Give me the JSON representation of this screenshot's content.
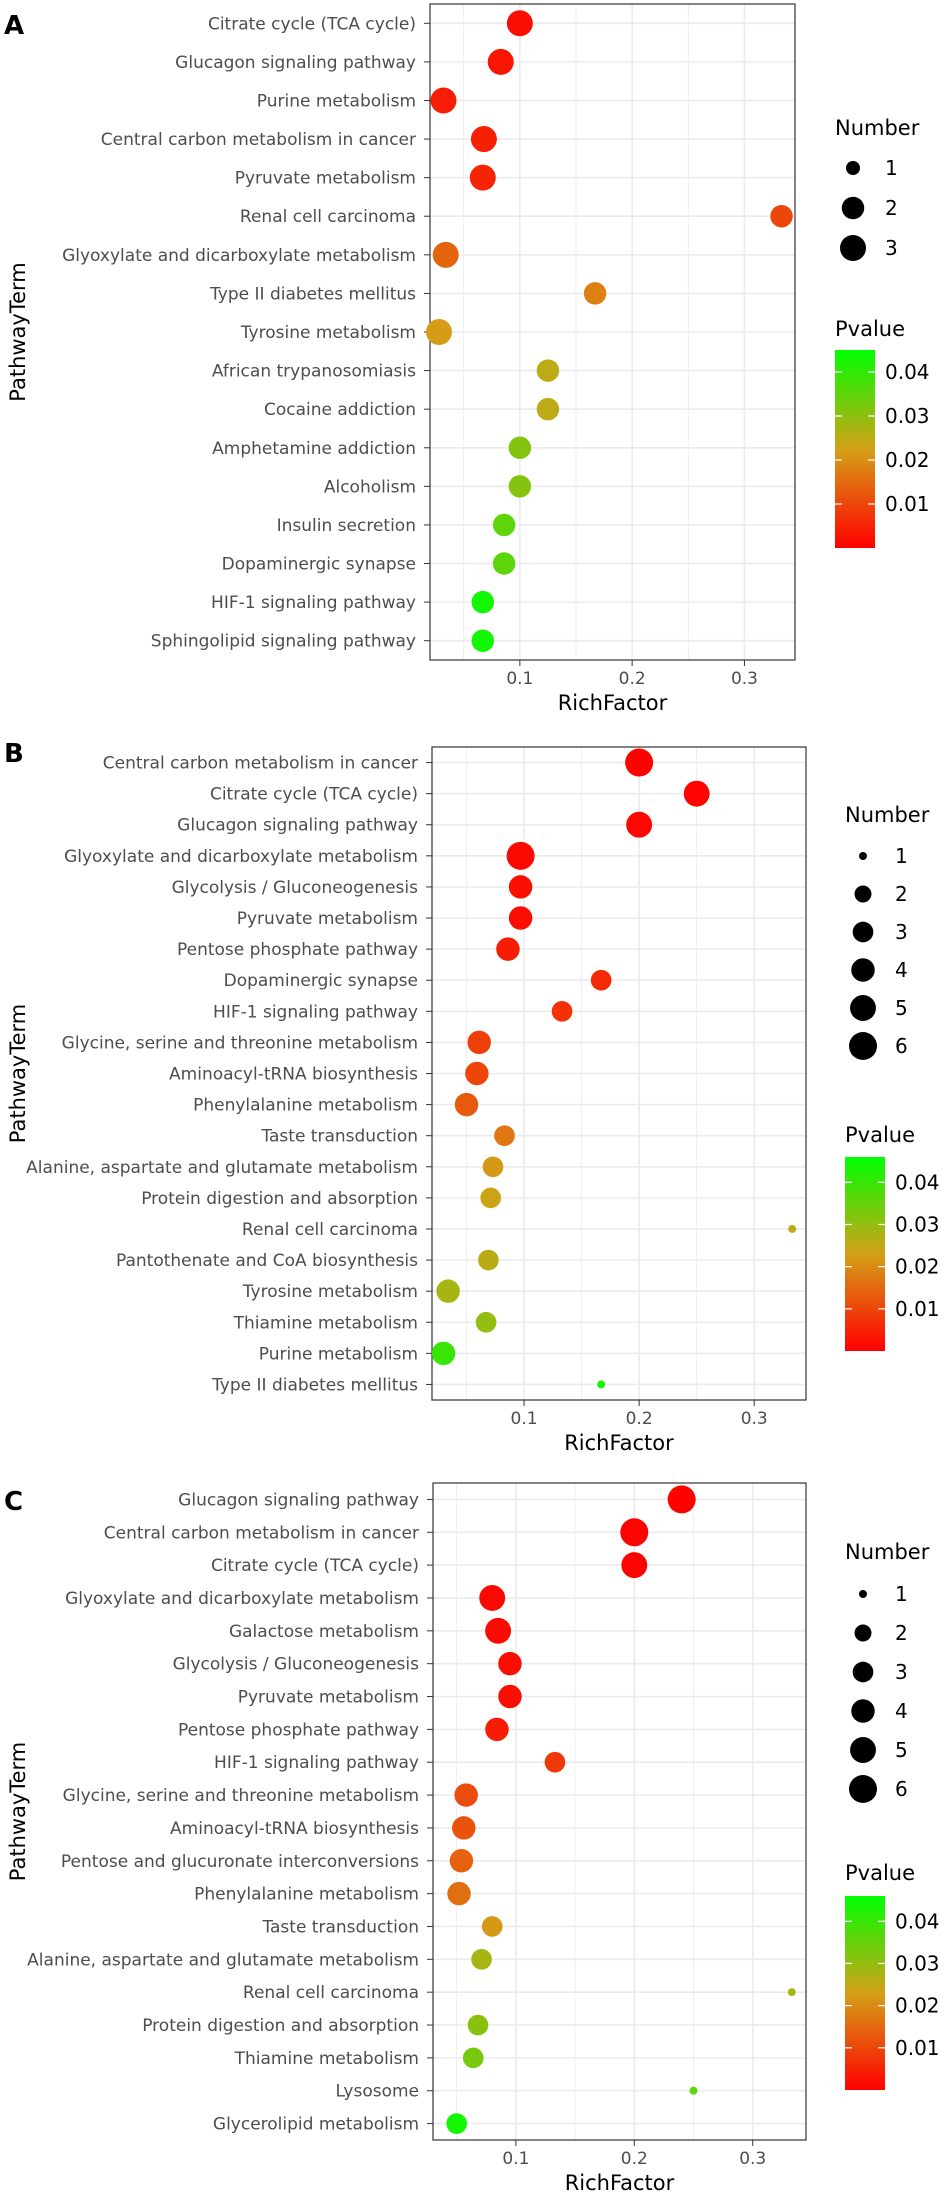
{
  "figure": {
    "panel_labels": [
      "A",
      "B",
      "C"
    ]
  },
  "colors": {
    "low": "#ff0000",
    "mid": "#d4a017",
    "high": "#00ff00",
    "panel_bg": "#ffffff",
    "grid": "#ebebeb",
    "border": "#333333"
  },
  "chart_data": [
    {
      "type": "scatter",
      "panel": "A",
      "xlabel": "RichFactor",
      "ylabel": "PathwayTerm",
      "xlim": [
        0.02,
        0.345
      ],
      "xticks": [
        0.1,
        0.2,
        0.3
      ],
      "xtick_labels": [
        "0.1",
        "0.2",
        "0.3"
      ],
      "size_legend": {
        "title": "Number",
        "values": [
          1,
          2,
          3
        ],
        "labels": [
          "1",
          "2",
          "3"
        ]
      },
      "color_legend": {
        "title": "Pvalue",
        "range": [
          0,
          0.045
        ],
        "ticks": [
          0.01,
          0.02,
          0.03,
          0.04
        ],
        "tick_labels": [
          "0.01",
          "0.02",
          "0.03",
          "0.04"
        ]
      },
      "points": [
        {
          "term": "Citrate cycle (TCA cycle)",
          "x": 0.1,
          "number": 3,
          "p": 0.002
        },
        {
          "term": "Glucagon signaling pathway",
          "x": 0.083,
          "number": 3,
          "p": 0.003
        },
        {
          "term": "Purine metabolism",
          "x": 0.032,
          "number": 3,
          "p": 0.004
        },
        {
          "term": "Central carbon metabolism in cancer",
          "x": 0.068,
          "number": 3,
          "p": 0.0045
        },
        {
          "term": "Pyruvate metabolism",
          "x": 0.067,
          "number": 3,
          "p": 0.005
        },
        {
          "term": "Renal cell carcinoma",
          "x": 0.333,
          "number": 2,
          "p": 0.01
        },
        {
          "term": "Glyoxylate and dicarboxylate metabolism",
          "x": 0.034,
          "number": 3,
          "p": 0.014
        },
        {
          "term": "Type II diabetes mellitus",
          "x": 0.167,
          "number": 2,
          "p": 0.018
        },
        {
          "term": "Tyrosine metabolism",
          "x": 0.028,
          "number": 3,
          "p": 0.022
        },
        {
          "term": "African trypanosomiasis",
          "x": 0.125,
          "number": 2,
          "p": 0.025
        },
        {
          "term": "Cocaine addiction",
          "x": 0.125,
          "number": 2,
          "p": 0.025
        },
        {
          "term": "Amphetamine addiction",
          "x": 0.1,
          "number": 2,
          "p": 0.031
        },
        {
          "term": "Alcoholism",
          "x": 0.1,
          "number": 2,
          "p": 0.031
        },
        {
          "term": "Insulin secretion",
          "x": 0.086,
          "number": 2,
          "p": 0.035
        },
        {
          "term": "Dopaminergic synapse",
          "x": 0.086,
          "number": 2,
          "p": 0.035
        },
        {
          "term": "HIF-1 signaling pathway",
          "x": 0.067,
          "number": 2,
          "p": 0.043
        },
        {
          "term": "Sphingolipid signaling pathway",
          "x": 0.067,
          "number": 2,
          "p": 0.043
        }
      ]
    },
    {
      "type": "scatter",
      "panel": "B",
      "xlabel": "RichFactor",
      "ylabel": "PathwayTerm",
      "xlim": [
        0.02,
        0.345
      ],
      "xticks": [
        0.1,
        0.2,
        0.3
      ],
      "xtick_labels": [
        "0.1",
        "0.2",
        "0.3"
      ],
      "size_legend": {
        "title": "Number",
        "values": [
          1,
          2,
          3,
          4,
          5,
          6
        ],
        "labels": [
          "1",
          "2",
          "3",
          "4",
          "5",
          "6"
        ]
      },
      "color_legend": {
        "title": "Pvalue",
        "range": [
          0,
          0.046
        ],
        "ticks": [
          0.01,
          0.02,
          0.03,
          0.04
        ],
        "tick_labels": [
          "0.01",
          "0.02",
          "0.03",
          "0.04"
        ]
      },
      "points": [
        {
          "term": "Central carbon metabolism in cancer",
          "x": 0.2,
          "number": 6,
          "p": 0.0003
        },
        {
          "term": "Citrate cycle (TCA cycle)",
          "x": 0.25,
          "number": 5,
          "p": 0.0004
        },
        {
          "term": "Glucagon signaling pathway",
          "x": 0.2,
          "number": 5,
          "p": 0.0008
        },
        {
          "term": "Glyoxylate and dicarboxylate metabolism",
          "x": 0.097,
          "number": 6,
          "p": 0.0015
        },
        {
          "term": "Glycolysis / Gluconeogenesis",
          "x": 0.097,
          "number": 4,
          "p": 0.002
        },
        {
          "term": "Pyruvate metabolism",
          "x": 0.097,
          "number": 4,
          "p": 0.002
        },
        {
          "term": "Pentose phosphate pathway",
          "x": 0.086,
          "number": 4,
          "p": 0.004
        },
        {
          "term": "Dopaminergic synapse",
          "x": 0.167,
          "number": 3,
          "p": 0.006
        },
        {
          "term": "HIF-1 signaling pathway",
          "x": 0.133,
          "number": 3,
          "p": 0.007
        },
        {
          "term": "Glycine, serine and threonine metabolism",
          "x": 0.061,
          "number": 4,
          "p": 0.009
        },
        {
          "term": "Aminoacyl-tRNA biosynthesis",
          "x": 0.059,
          "number": 4,
          "p": 0.01
        },
        {
          "term": "Phenylalanine metabolism",
          "x": 0.05,
          "number": 4,
          "p": 0.013
        },
        {
          "term": "Taste transduction",
          "x": 0.083,
          "number": 3,
          "p": 0.017
        },
        {
          "term": "Alanine, aspartate and glutamate metabolism",
          "x": 0.073,
          "number": 3,
          "p": 0.022
        },
        {
          "term": "Protein digestion and absorption",
          "x": 0.071,
          "number": 3,
          "p": 0.024
        },
        {
          "term": "Renal cell carcinoma",
          "x": 0.333,
          "number": 1,
          "p": 0.025
        },
        {
          "term": "Pantothenate and CoA biosynthesis",
          "x": 0.069,
          "number": 3,
          "p": 0.026
        },
        {
          "term": "Tyrosine metabolism",
          "x": 0.034,
          "number": 4,
          "p": 0.028
        },
        {
          "term": "Thiamine metabolism",
          "x": 0.067,
          "number": 3,
          "p": 0.03
        },
        {
          "term": "Purine metabolism",
          "x": 0.03,
          "number": 4,
          "p": 0.04
        },
        {
          "term": "Type II diabetes mellitus",
          "x": 0.167,
          "number": 1,
          "p": 0.044
        }
      ]
    },
    {
      "type": "scatter",
      "panel": "C",
      "xlabel": "RichFactor",
      "ylabel": "PathwayTerm",
      "xlim": [
        0.03,
        0.345
      ],
      "xticks": [
        0.1,
        0.2,
        0.3
      ],
      "xtick_labels": [
        "0.1",
        "0.2",
        "0.3"
      ],
      "size_legend": {
        "title": "Number",
        "values": [
          1,
          2,
          3,
          4,
          5,
          6
        ],
        "labels": [
          "1",
          "2",
          "3",
          "4",
          "5",
          "6"
        ]
      },
      "color_legend": {
        "title": "Pvalue",
        "range": [
          0,
          0.046
        ],
        "ticks": [
          0.01,
          0.02,
          0.03,
          0.04
        ],
        "tick_labels": [
          "0.01",
          "0.02",
          "0.03",
          "0.04"
        ]
      },
      "points": [
        {
          "term": "Glucagon signaling pathway",
          "x": 0.24,
          "number": 6,
          "p": 0.0003
        },
        {
          "term": "Central carbon metabolism in cancer",
          "x": 0.2,
          "number": 6,
          "p": 0.0004
        },
        {
          "term": "Citrate cycle (TCA cycle)",
          "x": 0.2,
          "number": 5,
          "p": 0.0006
        },
        {
          "term": "Glyoxylate and dicarboxylate metabolism",
          "x": 0.08,
          "number": 5,
          "p": 0.001
        },
        {
          "term": "Galactose metabolism",
          "x": 0.085,
          "number": 5,
          "p": 0.0015
        },
        {
          "term": "Glycolysis / Gluconeogenesis",
          "x": 0.095,
          "number": 4,
          "p": 0.002
        },
        {
          "term": "Pyruvate metabolism",
          "x": 0.095,
          "number": 4,
          "p": 0.002
        },
        {
          "term": "Pentose phosphate pathway",
          "x": 0.084,
          "number": 4,
          "p": 0.004
        },
        {
          "term": "HIF-1 signaling pathway",
          "x": 0.133,
          "number": 3,
          "p": 0.008
        },
        {
          "term": "Glycine, serine and threonine metabolism",
          "x": 0.058,
          "number": 4,
          "p": 0.011
        },
        {
          "term": "Aminoacyl-tRNA biosynthesis",
          "x": 0.056,
          "number": 4,
          "p": 0.012
        },
        {
          "term": "Pentose and glucuronate interconversions",
          "x": 0.054,
          "number": 4,
          "p": 0.014
        },
        {
          "term": "Phenylalanine metabolism",
          "x": 0.052,
          "number": 4,
          "p": 0.016
        },
        {
          "term": "Taste transduction",
          "x": 0.08,
          "number": 3,
          "p": 0.022
        },
        {
          "term": "Alanine, aspartate and glutamate metabolism",
          "x": 0.071,
          "number": 3,
          "p": 0.028
        },
        {
          "term": "Renal cell carcinoma",
          "x": 0.333,
          "number": 1,
          "p": 0.028
        },
        {
          "term": "Protein digestion and absorption",
          "x": 0.068,
          "number": 3,
          "p": 0.031
        },
        {
          "term": "Thiamine metabolism",
          "x": 0.064,
          "number": 3,
          "p": 0.033
        },
        {
          "term": "Lysosome",
          "x": 0.25,
          "number": 1,
          "p": 0.036
        },
        {
          "term": "Glycerolipid metabolism",
          "x": 0.05,
          "number": 3,
          "p": 0.044
        }
      ]
    }
  ]
}
